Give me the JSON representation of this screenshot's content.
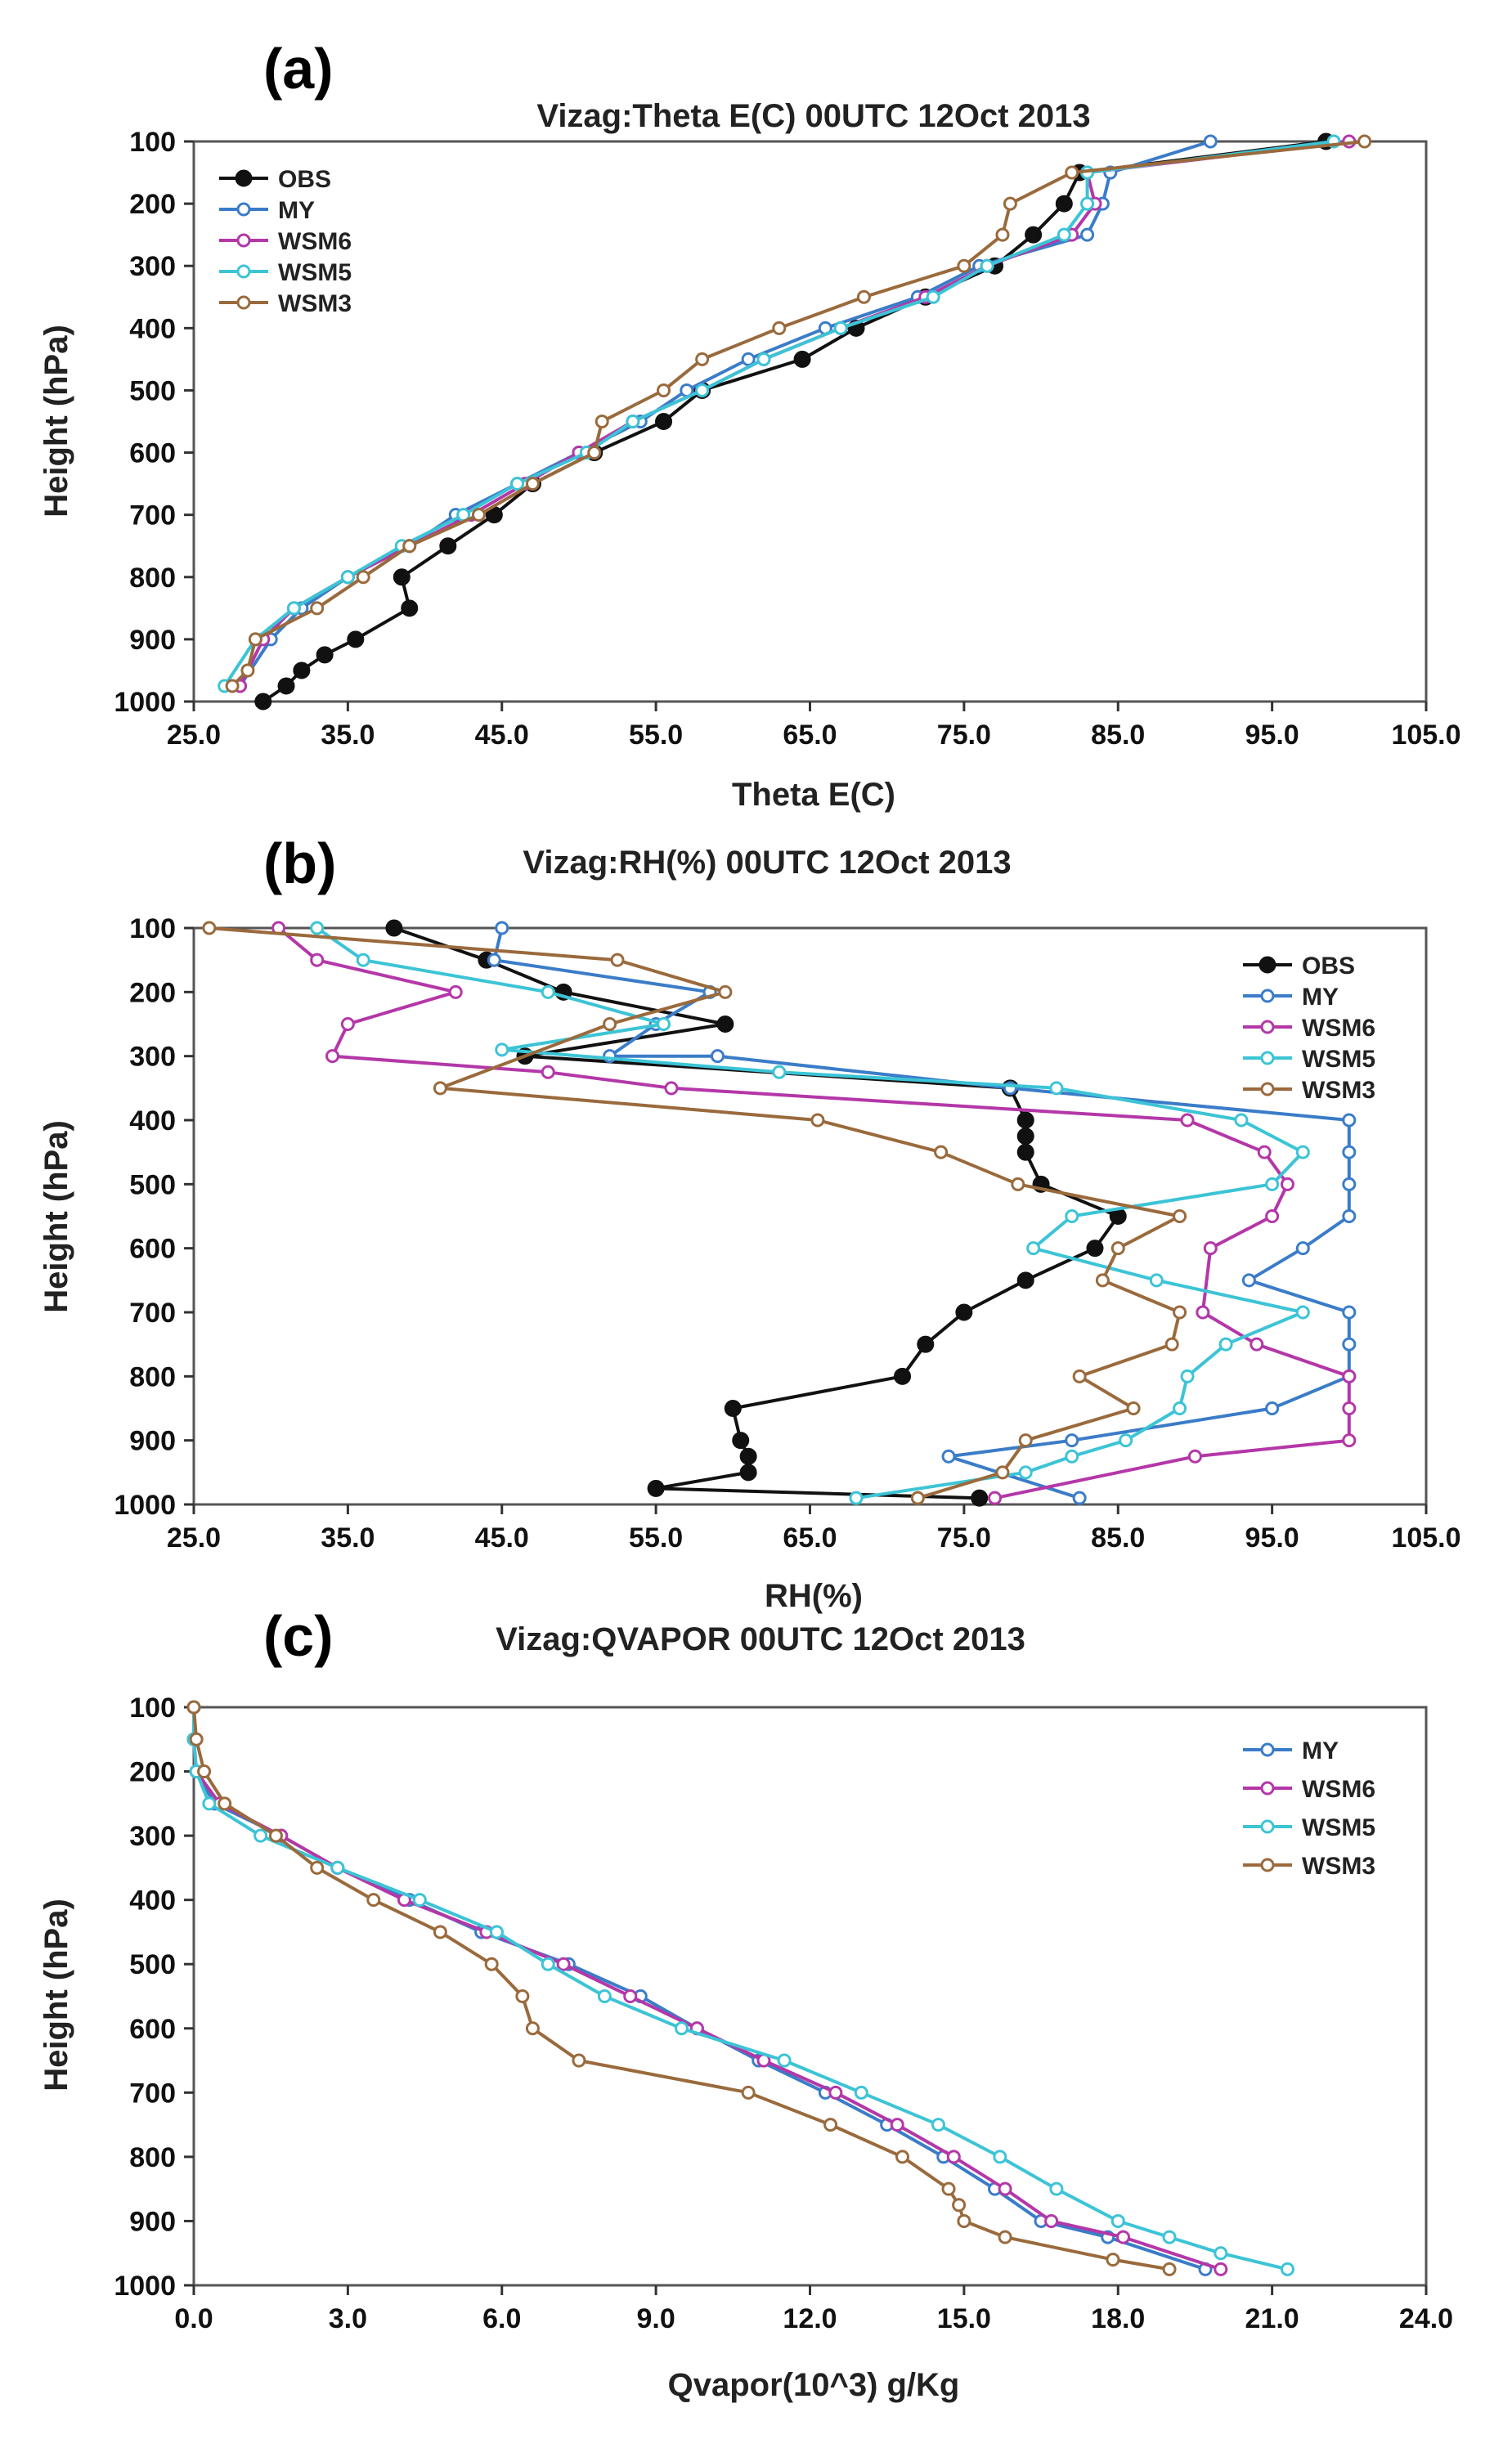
{
  "chart_data": [
    {
      "type": "line",
      "panel": "(a)",
      "title": "Vizag:Theta E(C) 00UTC 12Oct 2013",
      "xlabel": "Theta E(C)",
      "ylabel": "Height (hPa)",
      "xlim": [
        25,
        105
      ],
      "ylim": [
        100,
        1000
      ],
      "y_inverted": true,
      "x_ticks": [
        25,
        35,
        45,
        55,
        65,
        75,
        85,
        95,
        105
      ],
      "x_tick_labels": [
        "25.0",
        "35.0",
        "45.0",
        "55.0",
        "65.0",
        "75.0",
        "85.0",
        "95.0",
        "105.0"
      ],
      "y_ticks": [
        100,
        200,
        300,
        400,
        500,
        600,
        700,
        800,
        900,
        1000
      ],
      "y_tick_labels": [
        "100",
        "200",
        "300",
        "400",
        "500",
        "600",
        "700",
        "800",
        "900",
        "1000"
      ],
      "legend_position": "top-left",
      "series": [
        {
          "name": "OBS",
          "color": "#111111",
          "marker": "filled",
          "x": [
            98.5,
            82.5,
            81.5,
            79.5,
            77,
            72.5,
            68,
            64.5,
            58,
            55.5,
            51,
            47,
            44.5,
            41.5,
            38.5,
            39,
            35.5,
            33.5,
            32,
            31,
            29.5
          ],
          "y": [
            100,
            150,
            200,
            250,
            300,
            350,
            400,
            450,
            500,
            550,
            600,
            650,
            700,
            750,
            800,
            850,
            900,
            925,
            950,
            975,
            1000
          ]
        },
        {
          "name": "MY",
          "color": "#3a7cc8",
          "marker": "open",
          "x": [
            91,
            84.5,
            84,
            83,
            76,
            72,
            66,
            61,
            57,
            54,
            50,
            46,
            42,
            39,
            35,
            32,
            30,
            28
          ],
          "y": [
            100,
            150,
            200,
            250,
            300,
            350,
            400,
            450,
            500,
            550,
            600,
            650,
            700,
            750,
            800,
            850,
            900,
            975
          ]
        },
        {
          "name": "WSM6",
          "color": "#b437a8",
          "marker": "open",
          "x": [
            100,
            83,
            83.5,
            82,
            76.5,
            72.5,
            67,
            62,
            58,
            53.5,
            50,
            46.5,
            43,
            39,
            35,
            31.5,
            29.5,
            28
          ],
          "y": [
            100,
            150,
            200,
            250,
            300,
            350,
            400,
            450,
            500,
            550,
            600,
            650,
            700,
            750,
            800,
            850,
            900,
            975
          ]
        },
        {
          "name": "WSM5",
          "color": "#3cc4d6",
          "marker": "open",
          "x": [
            99,
            83,
            83,
            81.5,
            76.5,
            73,
            67,
            62,
            58,
            53.5,
            50.5,
            46,
            42.5,
            38.5,
            35,
            31.5,
            29,
            27
          ],
          "y": [
            100,
            150,
            200,
            250,
            300,
            350,
            400,
            450,
            500,
            550,
            600,
            650,
            700,
            750,
            800,
            850,
            900,
            975
          ]
        },
        {
          "name": "WSM3",
          "color": "#9a6a3c",
          "marker": "open",
          "x": [
            101,
            82,
            78,
            77.5,
            75,
            68.5,
            63,
            58,
            55.5,
            51.5,
            51,
            47,
            43.5,
            39,
            36,
            33,
            29,
            28.5,
            27.5
          ],
          "y": [
            100,
            150,
            200,
            250,
            300,
            350,
            400,
            450,
            500,
            550,
            600,
            650,
            700,
            750,
            800,
            850,
            900,
            950,
            975
          ]
        }
      ]
    },
    {
      "type": "line",
      "panel": "(b)",
      "title": "Vizag:RH(%) 00UTC 12Oct 2013",
      "xlabel": "RH(%)",
      "ylabel": "Height (hPa)",
      "xlim": [
        25,
        105
      ],
      "ylim": [
        100,
        1000
      ],
      "y_inverted": true,
      "x_ticks": [
        25,
        35,
        45,
        55,
        65,
        75,
        85,
        95,
        105
      ],
      "x_tick_labels": [
        "25.0",
        "35.0",
        "45.0",
        "55.0",
        "65.0",
        "75.0",
        "85.0",
        "95.0",
        "105.0"
      ],
      "y_ticks": [
        100,
        200,
        300,
        400,
        500,
        600,
        700,
        800,
        900,
        1000
      ],
      "y_tick_labels": [
        "100",
        "200",
        "300",
        "400",
        "500",
        "600",
        "700",
        "800",
        "900",
        "1000"
      ],
      "legend_position": "top-right",
      "series": [
        {
          "name": "OBS",
          "color": "#111111",
          "marker": "filled",
          "x": [
            38,
            44,
            49,
            59.5,
            46.5,
            78,
            79,
            79,
            79,
            80,
            85,
            83.5,
            79,
            75,
            72.5,
            71,
            60,
            60.5,
            61,
            61,
            55,
            76
          ],
          "y": [
            100,
            150,
            200,
            250,
            300,
            350,
            400,
            425,
            450,
            500,
            550,
            600,
            650,
            700,
            750,
            800,
            850,
            900,
            925,
            950,
            975,
            990
          ]
        },
        {
          "name": "MY",
          "color": "#3a7cc8",
          "marker": "open",
          "x": [
            45,
            44.5,
            58.5,
            55,
            52,
            59,
            78,
            100,
            100,
            100,
            100,
            97,
            93.5,
            100,
            100,
            100,
            95,
            82,
            74,
            82.5
          ],
          "y": [
            100,
            150,
            200,
            250,
            300,
            300,
            350,
            400,
            450,
            500,
            550,
            600,
            650,
            700,
            750,
            800,
            850,
            900,
            925,
            990
          ]
        },
        {
          "name": "WSM6",
          "color": "#b437a8",
          "marker": "open",
          "x": [
            30.5,
            33,
            42,
            35,
            34,
            48,
            56,
            89.5,
            94.5,
            96,
            95,
            91,
            90.5,
            94,
            100,
            100,
            100,
            90,
            77
          ],
          "y": [
            100,
            150,
            200,
            250,
            300,
            325,
            350,
            400,
            450,
            500,
            550,
            600,
            700,
            750,
            800,
            850,
            900,
            925,
            990
          ]
        },
        {
          "name": "WSM5",
          "color": "#3cc4d6",
          "marker": "open",
          "x": [
            33,
            36,
            48,
            55.5,
            45,
            63,
            81,
            93,
            97,
            95,
            82,
            79.5,
            87.5,
            97,
            92,
            89.5,
            89,
            85.5,
            82,
            79,
            68
          ],
          "y": [
            100,
            150,
            200,
            250,
            290,
            325,
            350,
            400,
            450,
            500,
            550,
            600,
            650,
            700,
            750,
            800,
            850,
            900,
            925,
            950,
            990
          ]
        },
        {
          "name": "WSM3",
          "color": "#9a6a3c",
          "marker": "open",
          "x": [
            26,
            52.5,
            59.5,
            52,
            41,
            65.5,
            73.5,
            78.5,
            89,
            85,
            84,
            89,
            88.5,
            82.5,
            86,
            79,
            77.5,
            72
          ],
          "y": [
            100,
            150,
            200,
            250,
            350,
            400,
            450,
            500,
            550,
            600,
            650,
            700,
            750,
            800,
            850,
            900,
            950,
            990
          ]
        }
      ]
    },
    {
      "type": "line",
      "panel": "(c)",
      "title": "Vizag:QVAPOR 00UTC 12Oct 2013",
      "xlabel": "Qvapor(10^3) g/Kg",
      "ylabel": "Height (hPa)",
      "xlim": [
        0,
        24
      ],
      "ylim": [
        100,
        1000
      ],
      "y_inverted": true,
      "x_ticks": [
        0,
        3,
        6,
        9,
        12,
        15,
        18,
        21,
        24
      ],
      "x_tick_labels": [
        "0.0",
        "3.0",
        "6.0",
        "9.0",
        "12.0",
        "15.0",
        "18.0",
        "21.0",
        "24.0"
      ],
      "y_ticks": [
        100,
        200,
        300,
        400,
        500,
        600,
        700,
        800,
        900,
        1000
      ],
      "y_tick_labels": [
        "100",
        "200",
        "300",
        "400",
        "500",
        "600",
        "700",
        "800",
        "900",
        "1000"
      ],
      "legend_position": "top-right",
      "series": [
        {
          "name": "MY",
          "color": "#3a7cc8",
          "marker": "open",
          "x": [
            0,
            0,
            0.05,
            0.4,
            1.7,
            2.8,
            4.2,
            5.6,
            7.3,
            8.7,
            9.8,
            11.0,
            12.3,
            13.5,
            14.6,
            15.6,
            16.5,
            17.8,
            19.7
          ],
          "y": [
            100,
            150,
            200,
            250,
            300,
            350,
            400,
            450,
            500,
            550,
            600,
            650,
            700,
            750,
            800,
            850,
            900,
            925,
            975
          ]
        },
        {
          "name": "WSM6",
          "color": "#b437a8",
          "marker": "open",
          "x": [
            0,
            0,
            0.05,
            0.5,
            1.7,
            2.8,
            4.1,
            5.7,
            7.2,
            8.5,
            9.8,
            11.1,
            12.5,
            13.7,
            14.8,
            15.8,
            16.7,
            18.1,
            20.0
          ],
          "y": [
            100,
            150,
            200,
            250,
            300,
            350,
            400,
            450,
            500,
            550,
            600,
            650,
            700,
            750,
            800,
            850,
            900,
            925,
            975
          ]
        },
        {
          "name": "WSM5",
          "color": "#3cc4d6",
          "marker": "open",
          "x": [
            0,
            0,
            0.05,
            0.3,
            1.3,
            2.8,
            4.4,
            5.9,
            6.9,
            8.0,
            9.5,
            11.5,
            13.0,
            14.5,
            15.7,
            16.8,
            18.0,
            19.0,
            20.0,
            21.3
          ],
          "y": [
            100,
            150,
            200,
            250,
            300,
            350,
            400,
            450,
            500,
            550,
            600,
            650,
            700,
            750,
            800,
            850,
            900,
            925,
            950,
            975
          ]
        },
        {
          "name": "WSM3",
          "color": "#9a6a3c",
          "marker": "open",
          "x": [
            0,
            0.05,
            0.2,
            0.6,
            1.6,
            2.4,
            3.5,
            4.8,
            5.8,
            6.4,
            6.6,
            7.5,
            10.8,
            12.4,
            13.8,
            14.7,
            14.9,
            15.0,
            15.8,
            17.9,
            19.0
          ],
          "y": [
            100,
            150,
            200,
            250,
            300,
            350,
            400,
            450,
            500,
            550,
            600,
            650,
            700,
            750,
            800,
            850,
            875,
            900,
            925,
            960,
            975
          ]
        }
      ]
    }
  ]
}
